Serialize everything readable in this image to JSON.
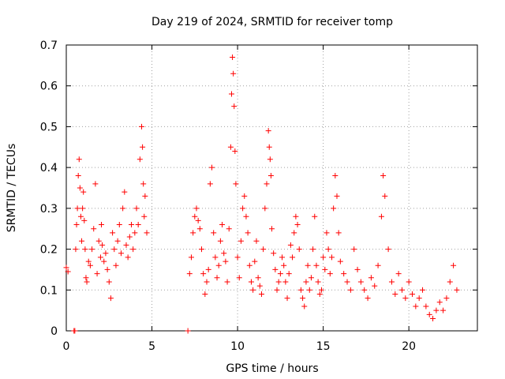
{
  "chart_data": {
    "type": "scatter",
    "title": "Day 219 of 2024, SRMTID for receiver tomp",
    "xlabel": "GPS time / hours",
    "ylabel": "SRMTID / TECUs",
    "xlim": [
      0,
      24
    ],
    "ylim": [
      0,
      0.7
    ],
    "xticks": [
      0,
      5,
      10,
      15,
      20
    ],
    "xtick_labels": [
      "0",
      "5",
      "10",
      "15",
      "20"
    ],
    "yticks": [
      0,
      0.1,
      0.2,
      0.3,
      0.4,
      0.5,
      0.6,
      0.7
    ],
    "ytick_labels": [
      "0",
      "0.1",
      "0.2",
      "0.3",
      "0.4",
      "0.5",
      "0.6",
      "0.7"
    ],
    "grid": true,
    "marker": "+",
    "color": "#ff0000",
    "series": [
      {
        "name": "SRMTID",
        "x": [
          0.0,
          0.1,
          0.45,
          0.5,
          0.55,
          0.6,
          0.65,
          0.7,
          0.75,
          0.8,
          0.85,
          0.9,
          0.95,
          1.0,
          1.05,
          1.1,
          1.15,
          1.2,
          1.3,
          1.4,
          1.5,
          1.6,
          1.7,
          1.8,
          1.9,
          2.0,
          2.05,
          2.1,
          2.2,
          2.3,
          2.4,
          2.5,
          2.6,
          2.7,
          2.8,
          2.9,
          3.0,
          3.1,
          3.2,
          3.3,
          3.4,
          3.5,
          3.6,
          3.7,
          3.8,
          3.9,
          4.0,
          4.1,
          4.2,
          4.3,
          4.4,
          4.45,
          4.5,
          4.55,
          4.6,
          4.7,
          7.1,
          7.2,
          7.3,
          7.4,
          7.5,
          7.6,
          7.7,
          7.8,
          7.9,
          8.0,
          8.1,
          8.2,
          8.3,
          8.4,
          8.5,
          8.6,
          8.7,
          8.8,
          8.9,
          9.0,
          9.1,
          9.2,
          9.3,
          9.4,
          9.5,
          9.6,
          9.65,
          9.7,
          9.75,
          9.8,
          9.85,
          9.9,
          10.0,
          10.1,
          10.2,
          10.3,
          10.4,
          10.5,
          10.6,
          10.7,
          10.8,
          10.9,
          11.0,
          11.1,
          11.2,
          11.3,
          11.4,
          11.5,
          11.6,
          11.7,
          11.8,
          11.85,
          11.9,
          11.95,
          12.0,
          12.1,
          12.2,
          12.3,
          12.4,
          12.5,
          12.6,
          12.7,
          12.8,
          12.9,
          13.0,
          13.1,
          13.2,
          13.3,
          13.4,
          13.5,
          13.6,
          13.7,
          13.8,
          13.9,
          14.0,
          14.1,
          14.2,
          14.3,
          14.4,
          14.5,
          14.6,
          14.7,
          14.8,
          14.9,
          15.0,
          15.1,
          15.2,
          15.3,
          15.4,
          15.5,
          15.6,
          15.7,
          15.8,
          15.9,
          16.0,
          16.2,
          16.4,
          16.6,
          16.8,
          17.0,
          17.2,
          17.4,
          17.6,
          17.8,
          18.0,
          18.2,
          18.4,
          18.5,
          18.6,
          18.8,
          19.0,
          19.2,
          19.4,
          19.6,
          19.8,
          20.0,
          20.2,
          20.4,
          20.6,
          20.8,
          21.0,
          21.2,
          21.4,
          21.6,
          21.8,
          22.0,
          22.2,
          22.4,
          22.6,
          22.8
        ],
        "y": [
          0.155,
          0.145,
          0.0,
          0.0,
          0.2,
          0.26,
          0.3,
          0.38,
          0.42,
          0.35,
          0.28,
          0.22,
          0.3,
          0.34,
          0.27,
          0.2,
          0.13,
          0.12,
          0.17,
          0.16,
          0.2,
          0.25,
          0.36,
          0.14,
          0.22,
          0.18,
          0.26,
          0.21,
          0.17,
          0.19,
          0.15,
          0.12,
          0.08,
          0.24,
          0.2,
          0.16,
          0.22,
          0.26,
          0.19,
          0.3,
          0.34,
          0.21,
          0.18,
          0.23,
          0.26,
          0.2,
          0.24,
          0.3,
          0.26,
          0.42,
          0.5,
          0.45,
          0.36,
          0.28,
          0.33,
          0.24,
          0.0,
          0.14,
          0.18,
          0.24,
          0.28,
          0.3,
          0.27,
          0.25,
          0.2,
          0.14,
          0.09,
          0.12,
          0.15,
          0.36,
          0.4,
          0.24,
          0.18,
          0.13,
          0.16,
          0.22,
          0.26,
          0.19,
          0.17,
          0.12,
          0.25,
          0.45,
          0.58,
          0.67,
          0.63,
          0.55,
          0.44,
          0.36,
          0.18,
          0.13,
          0.22,
          0.3,
          0.33,
          0.28,
          0.24,
          0.16,
          0.12,
          0.1,
          0.17,
          0.22,
          0.13,
          0.11,
          0.09,
          0.2,
          0.3,
          0.36,
          0.49,
          0.45,
          0.42,
          0.38,
          0.25,
          0.19,
          0.15,
          0.1,
          0.12,
          0.14,
          0.18,
          0.16,
          0.12,
          0.08,
          0.14,
          0.21,
          0.18,
          0.24,
          0.28,
          0.26,
          0.2,
          0.1,
          0.08,
          0.06,
          0.12,
          0.16,
          0.1,
          0.13,
          0.2,
          0.28,
          0.16,
          0.12,
          0.09,
          0.1,
          0.18,
          0.15,
          0.24,
          0.2,
          0.14,
          0.18,
          0.3,
          0.38,
          0.33,
          0.24,
          0.17,
          0.14,
          0.12,
          0.1,
          0.2,
          0.15,
          0.12,
          0.1,
          0.08,
          0.13,
          0.11,
          0.16,
          0.28,
          0.38,
          0.33,
          0.2,
          0.12,
          0.09,
          0.14,
          0.1,
          0.08,
          0.12,
          0.09,
          0.06,
          0.08,
          0.1,
          0.06,
          0.04,
          0.03,
          0.05,
          0.07,
          0.05,
          0.08,
          0.12,
          0.16,
          0.1
        ]
      }
    ]
  }
}
